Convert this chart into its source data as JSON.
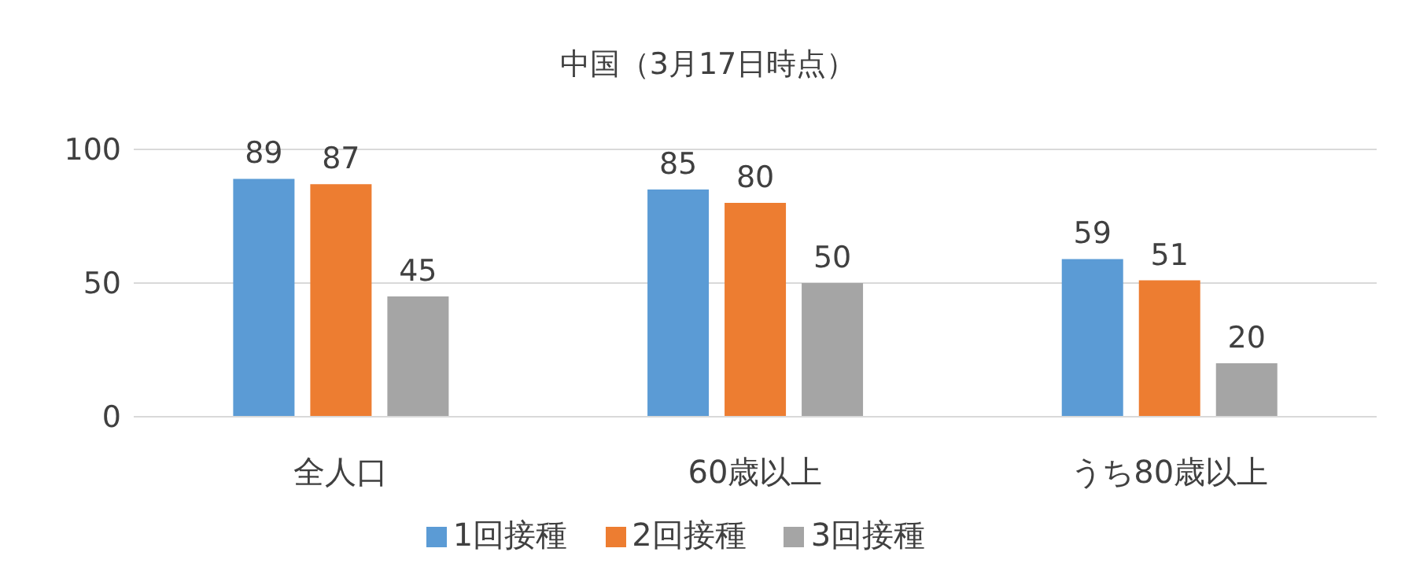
{
  "chart_data": {
    "type": "bar",
    "title": "中国（3月17日時点）",
    "categories": [
      "全人口",
      "60歳以上",
      "うち80歳以上"
    ],
    "series": [
      {
        "name": "1回接種",
        "color": "#5b9bd5",
        "values": [
          89,
          85,
          59
        ]
      },
      {
        "name": "2回接種",
        "color": "#ed7d31",
        "values": [
          87,
          80,
          51
        ]
      },
      {
        "name": "3回接種",
        "color": "#a5a5a5",
        "values": [
          45,
          50,
          20
        ]
      }
    ],
    "ylim": [
      0,
      100
    ],
    "yticks": [
      0,
      50,
      100
    ],
    "grid": "y",
    "legend": "bottom",
    "data_labels": true
  }
}
